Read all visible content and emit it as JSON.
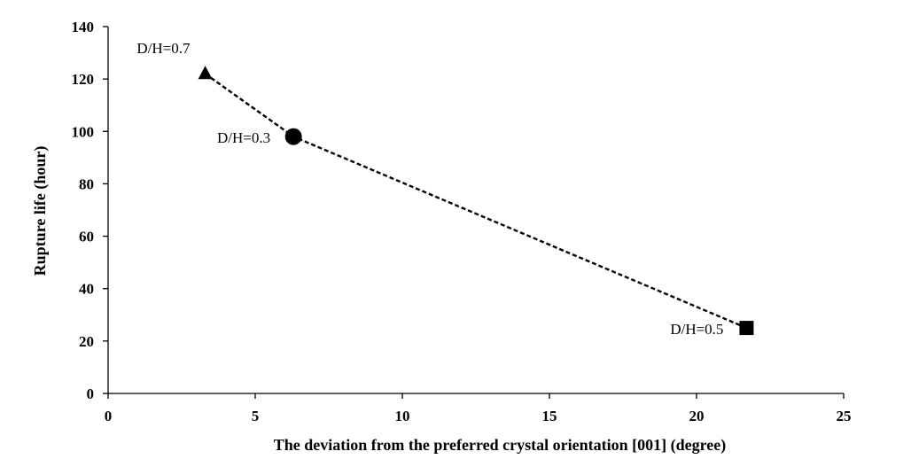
{
  "chart_data": {
    "type": "line",
    "title": "",
    "xlabel": "The deviation from the preferred crystal orientation [001] (degree)",
    "ylabel": "Rupture life (hour)",
    "xlim": [
      0,
      25
    ],
    "ylim": [
      0,
      140
    ],
    "xticks": [
      0,
      5,
      10,
      15,
      20,
      25
    ],
    "yticks": [
      0,
      20,
      40,
      60,
      80,
      100,
      120,
      140
    ],
    "grid": false,
    "line_style": "dashed",
    "line_color": "#000000",
    "points": [
      {
        "x": 3.3,
        "y": 122,
        "marker": "triangle",
        "label": "D/H=0.7",
        "label_position": "top-left"
      },
      {
        "x": 6.3,
        "y": 98,
        "marker": "circle",
        "label": "D/H=0.3",
        "label_position": "left"
      },
      {
        "x": 21.7,
        "y": 25,
        "marker": "square",
        "label": "D/H=0.5",
        "label_position": "left"
      }
    ]
  }
}
